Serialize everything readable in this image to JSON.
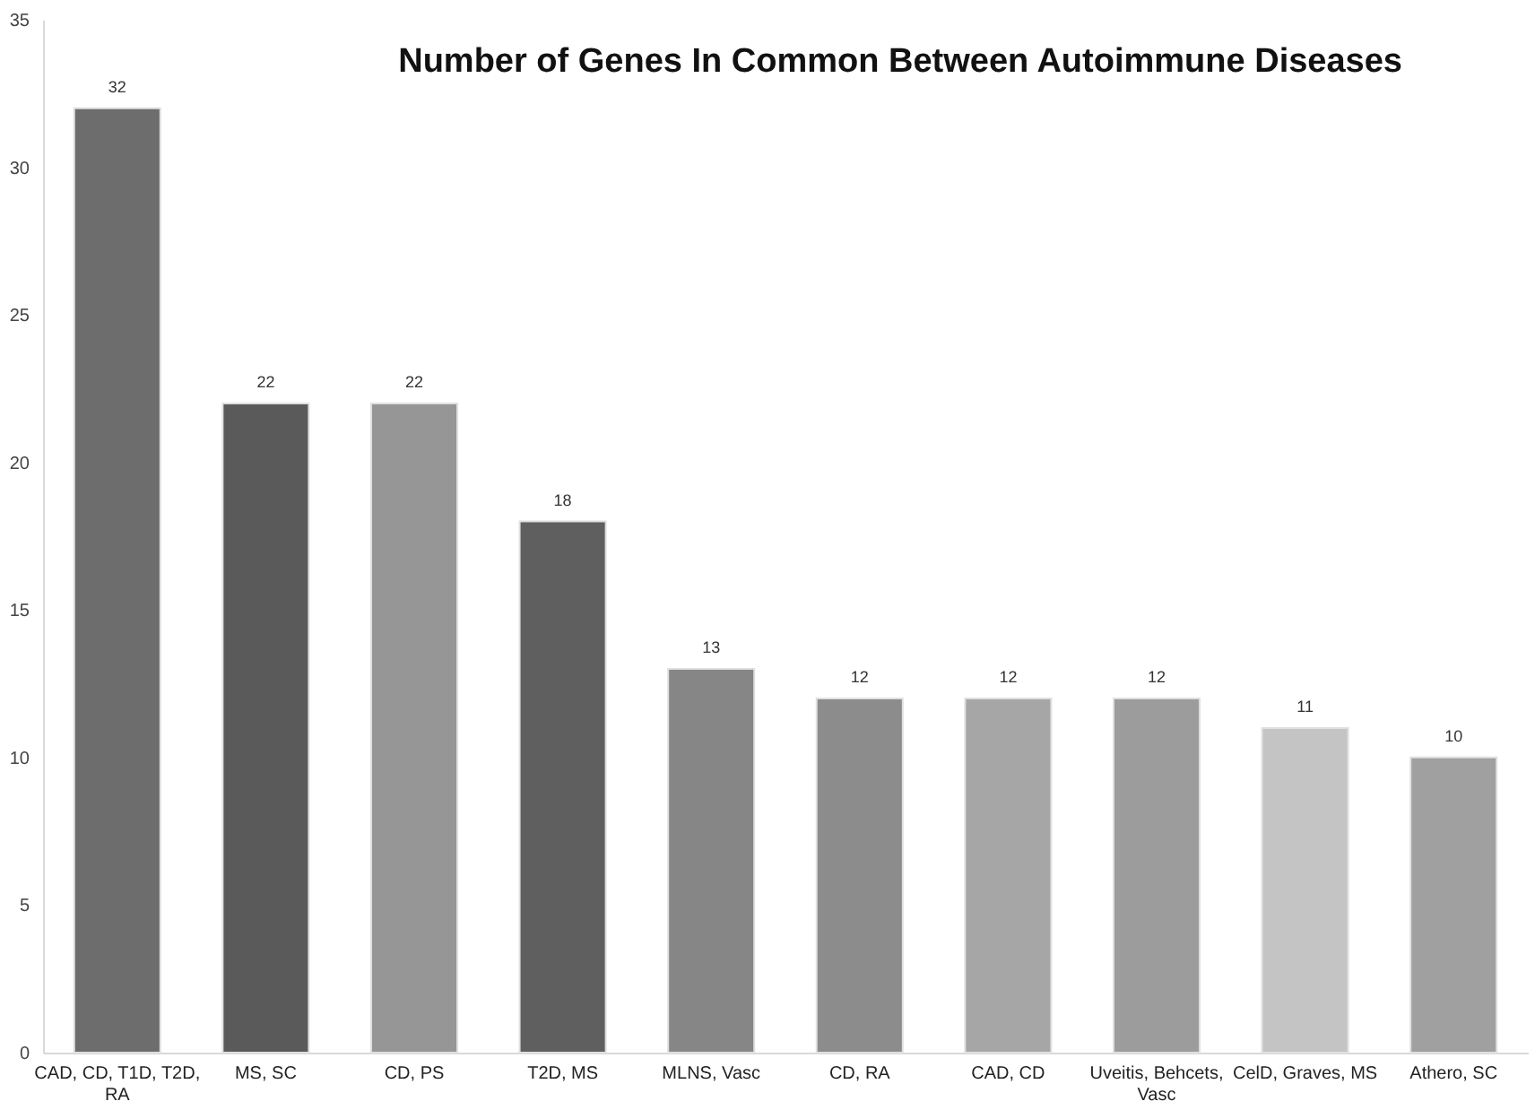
{
  "chart_data": {
    "type": "bar",
    "title": "Number of Genes In Common Between Autoimmune Diseases",
    "categories": [
      "CAD, CD, T1D, T2D, RA",
      "MS, SC",
      "CD, PS",
      "T2D, MS",
      "MLNS, Vasc",
      "CD, RA",
      "CAD, CD",
      "Uveitis, Behcets, Vasc",
      "CelD, Graves, MS",
      "Athero, SC"
    ],
    "values": [
      32,
      22,
      22,
      18,
      13,
      12,
      12,
      12,
      11,
      10
    ],
    "colors": [
      "#6d6d6d",
      "#5a5a5a",
      "#969696",
      "#5f5f5f",
      "#868686",
      "#8c8c8c",
      "#a6a6a6",
      "#9c9c9c",
      "#c4c4c4",
      "#a0a0a0"
    ],
    "ylim": [
      0,
      35
    ],
    "yticks": [
      0,
      5,
      10,
      15,
      20,
      25,
      30,
      35
    ],
    "data_labels": true
  }
}
